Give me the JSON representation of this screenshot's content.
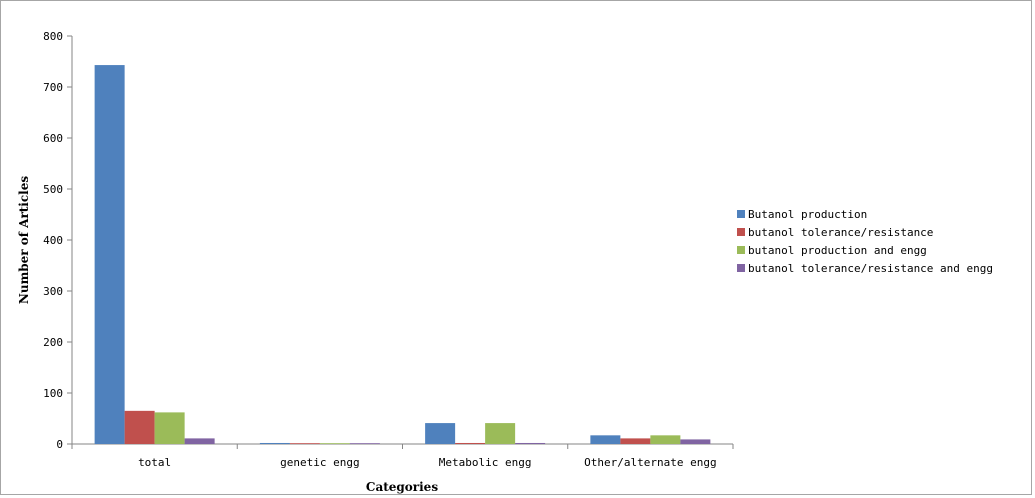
{
  "chart_data": {
    "type": "bar",
    "title": "",
    "xlabel": "Categories",
    "ylabel": "Number of Articles",
    "categories": [
      "total",
      "genetic engg",
      "Metabolic engg",
      "Other/alternate engg"
    ],
    "ylim": [
      0,
      800
    ],
    "yticks": [
      0,
      100,
      200,
      300,
      400,
      500,
      600,
      700,
      800
    ],
    "grid": false,
    "legend_position": "right",
    "series": [
      {
        "name": "Butanol production",
        "color": "#4f81bd",
        "values": [
          743,
          2,
          41,
          17
        ]
      },
      {
        "name": "butanol tolerance/resistance",
        "color": "#c0504d",
        "values": [
          65,
          1,
          2,
          11
        ]
      },
      {
        "name": "butanol production and engg",
        "color": "#9bbb59",
        "values": [
          62,
          1,
          41,
          17
        ]
      },
      {
        "name": "butanol tolerance/resistance and engg",
        "color": "#8064a2",
        "values": [
          11,
          1,
          2,
          9
        ]
      }
    ]
  }
}
